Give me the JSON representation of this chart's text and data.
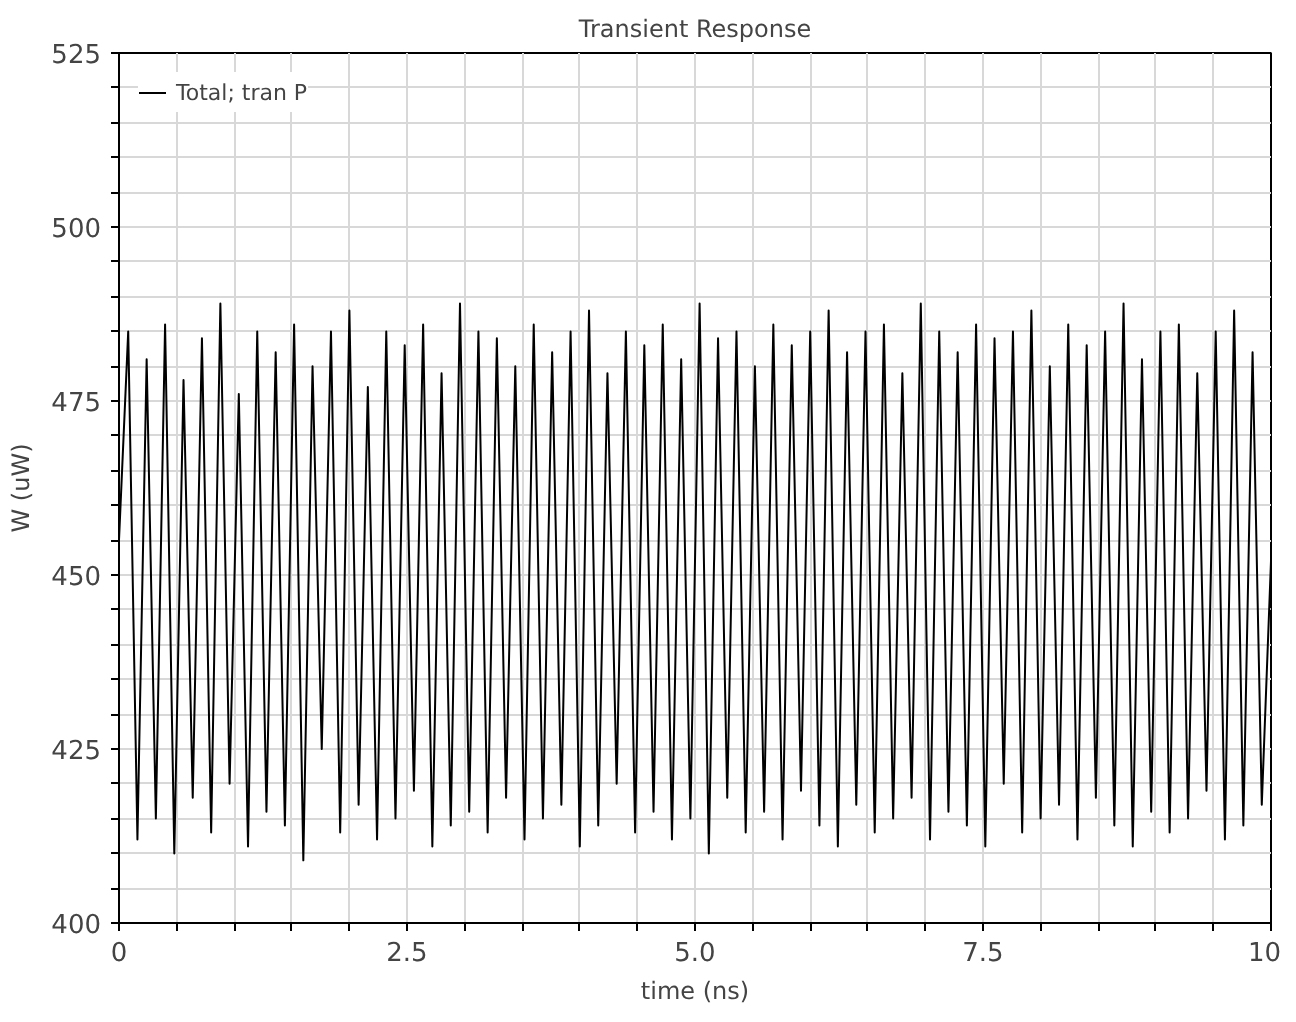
{
  "chart_data": {
    "type": "line",
    "title": "Transient Response",
    "xlabel": "time (ns)",
    "ylabel": "W (uW)",
    "xlim": [
      0,
      10
    ],
    "ylim": [
      400,
      525
    ],
    "xticks": [
      0,
      {
        "value": 0.5,
        "label": null
      },
      {
        "value": 1,
        "label": null
      },
      {
        "value": 1.5,
        "label": null
      },
      {
        "value": 2,
        "label": null
      },
      {
        "value": 2.5,
        "label": "2.5"
      },
      {
        "value": 3,
        "label": null
      },
      {
        "value": 3.5,
        "label": null
      },
      {
        "value": 4,
        "label": null
      },
      {
        "value": 4.5,
        "label": null
      },
      {
        "value": 5,
        "label": "5.0"
      },
      {
        "value": 5.5,
        "label": null
      },
      {
        "value": 6,
        "label": null
      },
      {
        "value": 6.5,
        "label": null
      },
      {
        "value": 7,
        "label": null
      },
      {
        "value": 7.5,
        "label": "7.5"
      },
      {
        "value": 8,
        "label": null
      },
      {
        "value": 8.5,
        "label": null
      },
      {
        "value": 9,
        "label": null
      },
      {
        "value": 9.5,
        "label": null
      },
      10
    ],
    "yticks": [
      400,
      {
        "value": 405,
        "label": null
      },
      {
        "value": 410,
        "label": null
      },
      {
        "value": 415,
        "label": null
      },
      {
        "value": 420,
        "label": null
      },
      425,
      {
        "value": 430,
        "label": null
      },
      {
        "value": 435,
        "label": null
      },
      {
        "value": 440,
        "label": null
      },
      {
        "value": 445,
        "label": null
      },
      450,
      {
        "value": 455,
        "label": null
      },
      {
        "value": 460,
        "label": null
      },
      {
        "value": 465,
        "label": null
      },
      {
        "value": 470,
        "label": null
      },
      475,
      {
        "value": 480,
        "label": null
      },
      {
        "value": 485,
        "label": null
      },
      {
        "value": 490,
        "label": null
      },
      {
        "value": 495,
        "label": null
      },
      500,
      {
        "value": 505,
        "label": null
      },
      {
        "value": 510,
        "label": null
      },
      {
        "value": 515,
        "label": null
      },
      {
        "value": 520,
        "label": null
      },
      525
    ],
    "grid": true,
    "legend": "top left",
    "x": [
      0,
      0.08,
      0.16,
      0.24,
      0.32,
      0.4,
      0.48,
      0.56,
      0.64,
      0.72,
      0.8,
      0.88,
      0.96,
      1.04,
      1.12,
      1.2,
      1.28,
      1.36,
      1.44,
      1.52,
      1.6,
      1.68,
      1.76,
      1.84,
      1.92,
      2,
      2.08,
      2.16,
      2.24,
      2.32,
      2.4,
      2.48,
      2.56,
      2.64,
      2.72,
      2.8,
      2.88,
      2.96,
      3.04,
      3.12,
      3.2,
      3.28,
      3.36,
      3.44,
      3.52,
      3.6,
      3.68,
      3.76,
      3.84,
      3.92,
      4,
      4.08,
      4.16,
      4.24,
      4.32,
      4.4,
      4.48,
      4.56,
      4.64,
      4.72,
      4.8,
      4.88,
      4.96,
      5.04,
      5.12,
      5.2,
      5.28,
      5.36,
      5.44,
      5.52,
      5.6,
      5.68,
      5.76,
      5.84,
      5.92,
      6,
      6.08,
      6.16,
      6.24,
      6.32,
      6.4,
      6.48,
      6.56,
      6.64,
      6.72,
      6.8,
      6.88,
      6.96,
      7.04,
      7.12,
      7.2,
      7.28,
      7.36,
      7.44,
      7.52,
      7.6,
      7.68,
      7.76,
      7.84,
      7.92,
      8,
      8.08,
      8.16,
      8.24,
      8.32,
      8.4,
      8.48,
      8.56,
      8.64,
      8.72,
      8.8,
      8.88,
      8.96,
      9.04,
      9.12,
      9.2,
      9.28,
      9.36,
      9.44,
      9.52,
      9.6,
      9.68,
      9.76,
      9.84,
      9.92,
      10
    ],
    "series": [
      {
        "name": "Total; tran P",
        "color": "#000000",
        "values": [
          455,
          485,
          412,
          481,
          415,
          486,
          410,
          478,
          418,
          484,
          413,
          489,
          420,
          476,
          411,
          485,
          416,
          482,
          414,
          486,
          409,
          480,
          425,
          485,
          413,
          488,
          417,
          477,
          412,
          485,
          415,
          483,
          419,
          486,
          411,
          479,
          414,
          489,
          416,
          485,
          413,
          484,
          418,
          480,
          412,
          486,
          415,
          482,
          417,
          485,
          411,
          488,
          414,
          479,
          420,
          485,
          413,
          483,
          416,
          486,
          412,
          481,
          415,
          489,
          410,
          484,
          418,
          485,
          413,
          480,
          416,
          486,
          412,
          483,
          419,
          485,
          414,
          488,
          411,
          482,
          417,
          485,
          413,
          486,
          415,
          479,
          418,
          489,
          412,
          485,
          416,
          482,
          414,
          486,
          411,
          484,
          420,
          485,
          413,
          488,
          415,
          480,
          417,
          486,
          412,
          483,
          418,
          485,
          414,
          489,
          411,
          481,
          416,
          485,
          413,
          486,
          415,
          479,
          419,
          485,
          412,
          488,
          414,
          482,
          417,
          452
        ]
      }
    ]
  }
}
